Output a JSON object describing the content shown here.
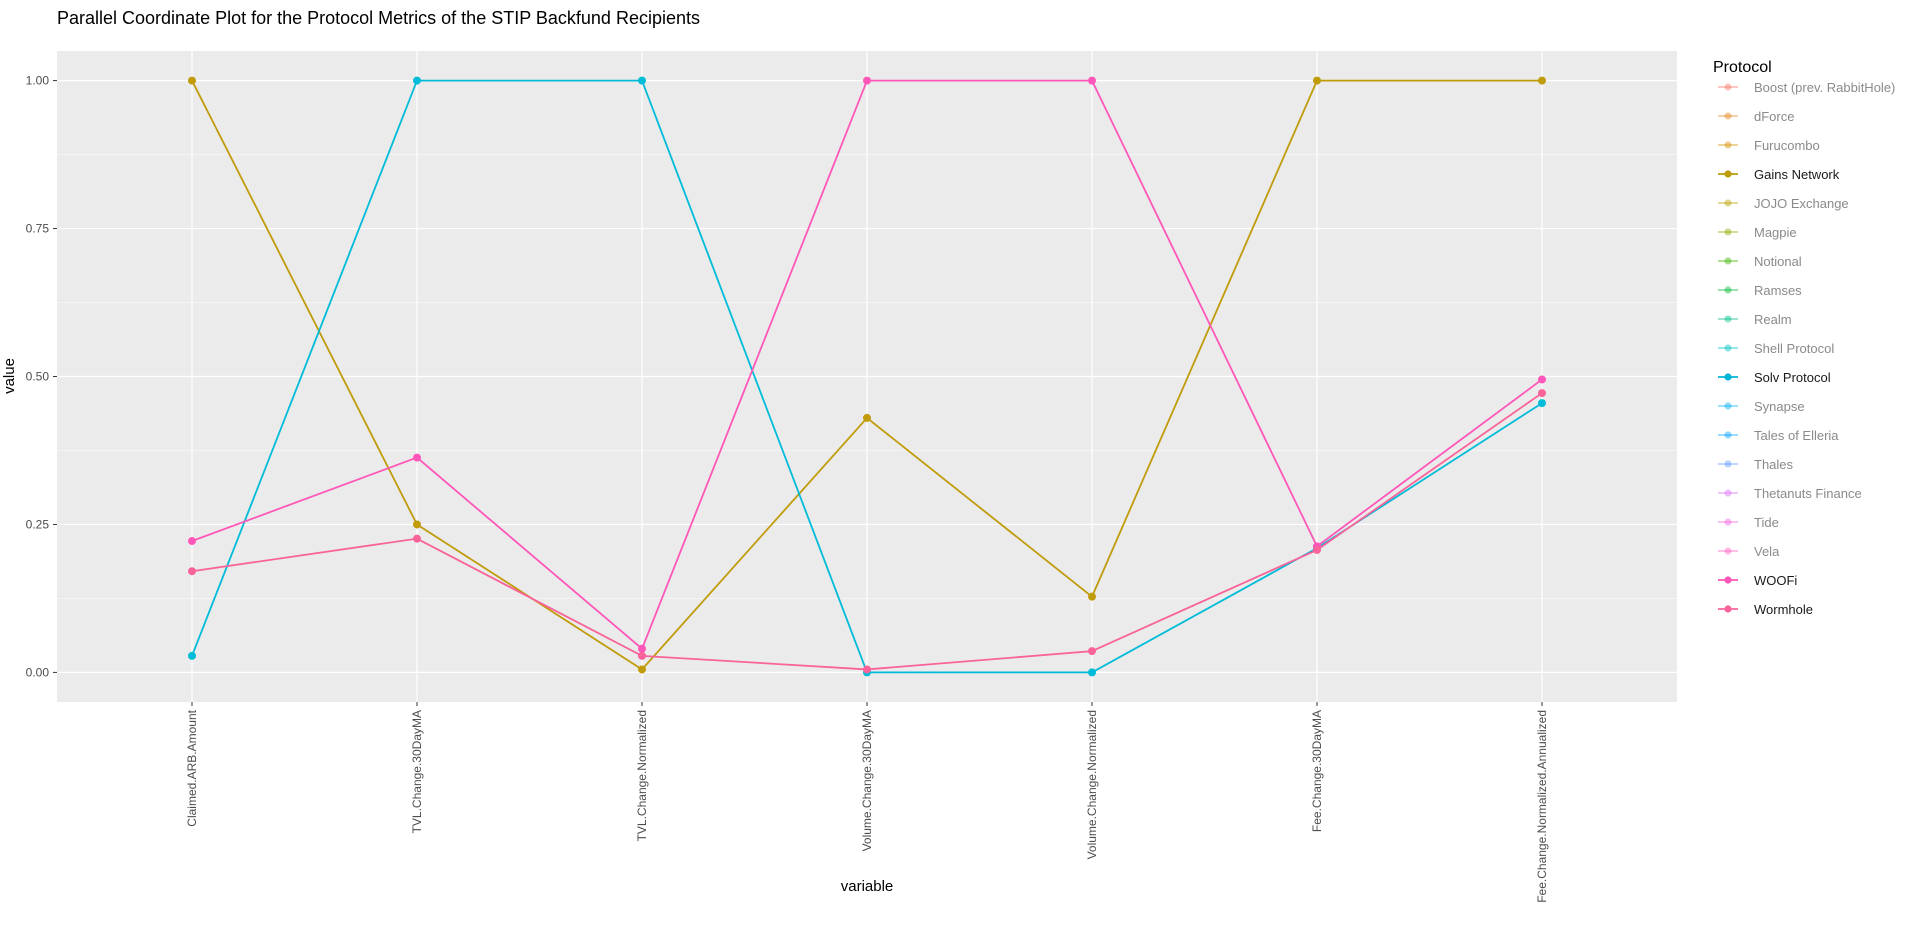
{
  "chart_data": {
    "type": "line",
    "title": "Parallel Coordinate Plot for the Protocol Metrics of the STIP Backfund Recipients",
    "xlabel": "variable",
    "ylabel": "value",
    "ylim": [
      -0.05,
      1.05
    ],
    "yticks": [
      0.0,
      0.25,
      0.5,
      0.75,
      1.0
    ],
    "ytick_labels": [
      "0.00",
      "0.25",
      "0.50",
      "0.75",
      "1.00"
    ],
    "categories": [
      "Claimed.ARB.Amount",
      "TVL.Change.30DayMA",
      "TVL.Change.Normalized",
      "Volume.Change.30DayMA",
      "Volume.Change.Normalized",
      "Fee.Change.30DayMA",
      "Fee.Change.Normalized.Annualized"
    ],
    "grid": true,
    "legend_title": "Protocol",
    "legend_position": "right",
    "legend": [
      {
        "name": "Boost (prev. RabbitHole)",
        "color": "#F8766D",
        "active": false
      },
      {
        "name": "dForce",
        "color": "#E7861B",
        "active": false
      },
      {
        "name": "Furucombo",
        "color": "#D39200",
        "active": false
      },
      {
        "name": "Gains Network",
        "color": "#C09B0A",
        "active": true
      },
      {
        "name": "JOJO Exchange",
        "color": "#B79F00",
        "active": false
      },
      {
        "name": "Magpie",
        "color": "#93AA00",
        "active": false
      },
      {
        "name": "Notional",
        "color": "#39B600",
        "active": false
      },
      {
        "name": "Ramses",
        "color": "#00BA38",
        "active": false
      },
      {
        "name": "Realm",
        "color": "#00C08B",
        "active": false
      },
      {
        "name": "Shell Protocol",
        "color": "#00BFC4",
        "active": false
      },
      {
        "name": "Solv Protocol",
        "color": "#00B5D7",
        "active": true
      },
      {
        "name": "Synapse",
        "color": "#00B0F6",
        "active": false
      },
      {
        "name": "Tales of Elleria",
        "color": "#00A5FF",
        "active": false
      },
      {
        "name": "Thales",
        "color": "#619CFF",
        "active": false
      },
      {
        "name": "Thetanuts Finance",
        "color": "#DB72FB",
        "active": false
      },
      {
        "name": "Tide",
        "color": "#F564E3",
        "active": false
      },
      {
        "name": "Vela",
        "color": "#FF61C3",
        "active": false
      },
      {
        "name": "WOOFi",
        "color": "#FF57B9",
        "active": true
      },
      {
        "name": "Wormhole",
        "color": "#F9639A",
        "active": true
      }
    ],
    "series": [
      {
        "name": "Gains Network",
        "color": "#C09B0A",
        "values": [
          1.0,
          0.25,
          0.005,
          0.43,
          0.128,
          1.0,
          1.0
        ]
      },
      {
        "name": "Solv Protocol",
        "color": "#00BCD8",
        "values": [
          0.028,
          1.0,
          1.0,
          0.0,
          0.0,
          0.21,
          0.455
        ]
      },
      {
        "name": "WOOFi",
        "color": "#FF57B9",
        "values": [
          0.222,
          0.363,
          0.04,
          1.0,
          1.0,
          0.213,
          0.495
        ]
      },
      {
        "name": "Wormhole",
        "color": "#F9639A",
        "values": [
          0.171,
          0.226,
          0.028,
          0.005,
          0.036,
          0.207,
          0.472
        ]
      }
    ]
  },
  "colors": {
    "panel_background": "#EBEBEB",
    "grid": "#FFFFFF",
    "inactive_legend_text": "#8A8A8A",
    "active_legend_text": "#1A1A1A",
    "axis_text": "#4D4D4D"
  }
}
